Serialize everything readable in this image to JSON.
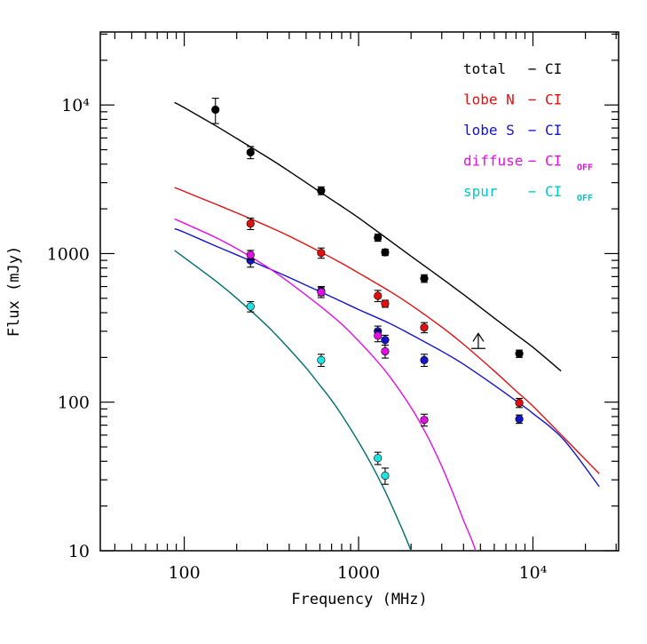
{
  "chart_data": {
    "type": "scatter",
    "title": "",
    "xlabel": "Frequency (MHz)",
    "ylabel": "Flux (mJy)",
    "xscale": "log",
    "yscale": "log",
    "xlim": [
      33,
      31000
    ],
    "ylim": [
      10,
      31000
    ],
    "x_ticks": [
      {
        "value": 100,
        "label": "100"
      },
      {
        "value": 1000,
        "label": "1000"
      },
      {
        "value": 10000,
        "label": "10⁴"
      }
    ],
    "y_ticks": [
      {
        "value": 10,
        "label": "10"
      },
      {
        "value": 100,
        "label": "100"
      },
      {
        "value": 1000,
        "label": "1000"
      },
      {
        "value": 10000,
        "label": "10⁴"
      }
    ],
    "legend_position": "top-right",
    "series": [
      {
        "name": "total",
        "legend_label": "total",
        "legend_fit": "− CI",
        "legend_sub": "",
        "color": "#000000",
        "marker_fill": "#000000",
        "marker_shape": "circle",
        "points": [
          {
            "x": 151,
            "y": 9300,
            "err": 1800
          },
          {
            "x": 240,
            "y": 4800,
            "err": 450
          },
          {
            "x": 610,
            "y": 2650,
            "err": 160
          },
          {
            "x": 1290,
            "y": 1280,
            "err": 70
          },
          {
            "x": 1420,
            "y": 1020,
            "err": 50
          },
          {
            "x": 2380,
            "y": 680,
            "err": 40
          },
          {
            "x": 8350,
            "y": 212,
            "err": 12
          }
        ],
        "upper_limit": {
          "x": 4860,
          "y": 230,
          "arrow_to": 290
        },
        "fit": {
          "x": [
            88,
            100,
            150,
            200,
            300,
            400,
            600,
            800,
            1000,
            1500,
            2000,
            3000,
            4000,
            6000,
            8000,
            10000,
            14500
          ],
          "y": [
            10400,
            9600,
            7300,
            5950,
            4450,
            3580,
            2600,
            2080,
            1740,
            1230,
            960,
            680,
            530,
            368,
            285,
            234,
            162
          ]
        }
      },
      {
        "name": "lobe N",
        "legend_label": "lobe N",
        "legend_fit": "− CI",
        "legend_sub": "",
        "color": "#e01010",
        "marker_fill": "#e01010",
        "marker_shape": "circle",
        "points": [
          {
            "x": 240,
            "y": 1590,
            "err": 140
          },
          {
            "x": 610,
            "y": 1010,
            "err": 80
          },
          {
            "x": 1290,
            "y": 520,
            "err": 45
          },
          {
            "x": 1420,
            "y": 460,
            "err": 25
          },
          {
            "x": 2380,
            "y": 318,
            "err": 25
          },
          {
            "x": 8350,
            "y": 99,
            "err": 7
          }
        ],
        "fit": {
          "x": [
            88,
            100,
            150,
            200,
            300,
            400,
            600,
            800,
            1000,
            1500,
            2000,
            3000,
            4000,
            6000,
            8000,
            10000,
            15000,
            24000
          ],
          "y": [
            2780,
            2620,
            2160,
            1880,
            1530,
            1310,
            1030,
            860,
            740,
            560,
            450,
            320,
            245,
            162,
            119,
            94,
            58,
            33
          ]
        }
      },
      {
        "name": "lobe S",
        "legend_label": "lobe S",
        "legend_fit": "− CI",
        "legend_sub": "",
        "color": "#1414c8",
        "marker_fill": "#1414c8",
        "marker_shape": "circle",
        "points": [
          {
            "x": 240,
            "y": 900,
            "err": 90
          },
          {
            "x": 610,
            "y": 560,
            "err": 40
          },
          {
            "x": 1290,
            "y": 300,
            "err": 25
          },
          {
            "x": 1420,
            "y": 262,
            "err": 20
          },
          {
            "x": 2380,
            "y": 192,
            "err": 18
          },
          {
            "x": 8350,
            "y": 77,
            "err": 5
          }
        ],
        "fit": {
          "x": [
            88,
            100,
            150,
            200,
            300,
            400,
            600,
            800,
            1000,
            1500,
            2000,
            3000,
            4000,
            6000,
            8000,
            10000,
            15000,
            24000
          ],
          "y": [
            1470,
            1390,
            1130,
            980,
            800,
            690,
            555,
            475,
            420,
            340,
            285,
            220,
            180,
            130,
            102,
            84,
            56,
            27
          ]
        }
      },
      {
        "name": "diffuse",
        "legend_label": "diffuse",
        "legend_fit": "− CI",
        "legend_sub": "OFF",
        "color": "#e010e0",
        "marker_fill": "#e010e0",
        "marker_shape": "circle",
        "points": [
          {
            "x": 240,
            "y": 980,
            "err": 70
          },
          {
            "x": 610,
            "y": 550,
            "err": 45
          },
          {
            "x": 1290,
            "y": 280,
            "err": 25
          },
          {
            "x": 1420,
            "y": 220,
            "err": 22
          },
          {
            "x": 2380,
            "y": 76,
            "err": 7
          }
        ],
        "fit": {
          "x": [
            88,
            100,
            150,
            200,
            300,
            400,
            600,
            800,
            1000,
            1200,
            1500,
            2000,
            2500,
            3000,
            3500,
            4000,
            4500,
            5000
          ],
          "y": [
            1710,
            1600,
            1290,
            1080,
            810,
            640,
            445,
            335,
            258,
            205,
            150,
            92,
            58,
            37,
            24,
            16,
            11.5,
            8
          ]
        }
      },
      {
        "name": "spur",
        "legend_label": "spur",
        "legend_fit": "− CI",
        "legend_sub": "OFF",
        "color": "#00c8c8",
        "marker_fill": "#22e0e0",
        "marker_shape": "circle",
        "fit_color": "#006e6e",
        "points": [
          {
            "x": 240,
            "y": 440,
            "err": 35
          },
          {
            "x": 610,
            "y": 192,
            "err": 18
          },
          {
            "x": 1290,
            "y": 42,
            "err": 4
          },
          {
            "x": 1420,
            "y": 32,
            "err": 4
          }
        ],
        "fit": {
          "x": [
            88,
            100,
            150,
            200,
            300,
            400,
            500,
            600,
            700,
            800,
            1000,
            1200,
            1400,
            1600,
            1800,
            2000,
            2200
          ],
          "y": [
            1050,
            940,
            660,
            500,
            325,
            228,
            170,
            130,
            103,
            82,
            54,
            37,
            26,
            18.5,
            13.5,
            10,
            7.5
          ]
        }
      }
    ]
  }
}
